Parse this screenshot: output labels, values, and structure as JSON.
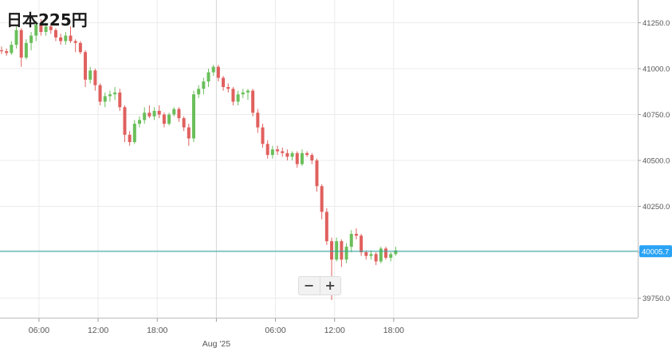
{
  "title": "日本225円",
  "zoom": {
    "minus": "−",
    "plus": "+"
  },
  "colors": {
    "up": "#6abf5b",
    "down": "#e0605e",
    "price_line": "#2aa3a0",
    "price_label_bg": "#2aa3f5",
    "grid": "#ebebeb"
  },
  "chart_data": {
    "type": "candlestick",
    "title": "日本225円",
    "interval_minutes": 30,
    "start_time": "04:00",
    "ylim": [
      39640,
      41340
    ],
    "y_ticks": [
      39750,
      40000,
      40250,
      40500,
      40750,
      41000,
      41250
    ],
    "y_tick_labels": [
      "39750.0",
      "40000.0",
      "40250.0",
      "40500.0",
      "40750.0",
      "41000.0",
      "41250.0"
    ],
    "x_tick_labels": [
      {
        "label": "06:00",
        "index": 4
      },
      {
        "label": "12:00",
        "index": 16
      },
      {
        "label": "18:00",
        "index": 28
      },
      {
        "label": "Aug '25",
        "index": 40,
        "date_separator": true
      },
      {
        "label": "06:00",
        "index": 52
      },
      {
        "label": "12:00",
        "index": 64
      },
      {
        "label": "18:00",
        "index": 76
      }
    ],
    "current_price": 40005.7,
    "current_price_label": "40005.7",
    "ohlc": [
      [
        41100,
        41120,
        41080,
        41095
      ],
      [
        41095,
        41110,
        41070,
        41085
      ],
      [
        41085,
        41150,
        41075,
        41130
      ],
      [
        41130,
        41230,
        41110,
        41210
      ],
      [
        41210,
        41220,
        41010,
        41060
      ],
      [
        41060,
        41160,
        41050,
        41140
      ],
      [
        41140,
        41200,
        41100,
        41180
      ],
      [
        41180,
        41260,
        41150,
        41240
      ],
      [
        41240,
        41270,
        41180,
        41200
      ],
      [
        41200,
        41250,
        41180,
        41230
      ],
      [
        41230,
        41240,
        41190,
        41210
      ],
      [
        41210,
        41220,
        41150,
        41170
      ],
      [
        41170,
        41190,
        41130,
        41150
      ],
      [
        41150,
        41200,
        41130,
        41180
      ],
      [
        41180,
        41230,
        41140,
        41150
      ],
      [
        41150,
        41160,
        41090,
        41140
      ],
      [
        41140,
        41150,
        41080,
        41090
      ],
      [
        41090,
        41100,
        40900,
        40940
      ],
      [
        40940,
        41010,
        40920,
        40990
      ],
      [
        40990,
        41000,
        40880,
        40910
      ],
      [
        40910,
        40920,
        40800,
        40820
      ],
      [
        40820,
        40870,
        40790,
        40850
      ],
      [
        40850,
        40880,
        40820,
        40860
      ],
      [
        40860,
        40900,
        40830,
        40870
      ],
      [
        40870,
        40890,
        40770,
        40790
      ],
      [
        40790,
        40800,
        40600,
        40640
      ],
      [
        40640,
        40660,
        40580,
        40600
      ],
      [
        40600,
        40720,
        40590,
        40700
      ],
      [
        40700,
        40740,
        40680,
        40720
      ],
      [
        40720,
        40790,
        40700,
        40760
      ],
      [
        40760,
        40800,
        40730,
        40740
      ],
      [
        40740,
        40790,
        40720,
        40770
      ],
      [
        40770,
        40800,
        40730,
        40750
      ],
      [
        40750,
        40760,
        40680,
        40700
      ],
      [
        40700,
        40760,
        40690,
        40750
      ],
      [
        40750,
        40790,
        40740,
        40780
      ],
      [
        40780,
        40790,
        40710,
        40730
      ],
      [
        40730,
        40740,
        40660,
        40680
      ],
      [
        40680,
        40700,
        40580,
        40620
      ],
      [
        40620,
        40880,
        40600,
        40860
      ],
      [
        40860,
        40910,
        40840,
        40890
      ],
      [
        40890,
        40950,
        40860,
        40930
      ],
      [
        40930,
        41000,
        40900,
        40980
      ],
      [
        40980,
        41020,
        40960,
        41010
      ],
      [
        41010,
        41020,
        40930,
        40950
      ],
      [
        40950,
        40960,
        40880,
        40900
      ],
      [
        40900,
        40920,
        40870,
        40890
      ],
      [
        40890,
        40900,
        40800,
        40820
      ],
      [
        40820,
        40880,
        40800,
        40860
      ],
      [
        40860,
        40890,
        40840,
        40870
      ],
      [
        40870,
        40890,
        40830,
        40880
      ],
      [
        40880,
        40890,
        40740,
        40760
      ],
      [
        40760,
        40780,
        40650,
        40680
      ],
      [
        40680,
        40700,
        40570,
        40590
      ],
      [
        40590,
        40610,
        40510,
        40530
      ],
      [
        40530,
        40580,
        40510,
        40560
      ],
      [
        40560,
        40580,
        40530,
        40550
      ],
      [
        40550,
        40570,
        40520,
        40540
      ],
      [
        40540,
        40560,
        40500,
        40520
      ],
      [
        40520,
        40550,
        40500,
        40540
      ],
      [
        40540,
        40550,
        40460,
        40480
      ],
      [
        40480,
        40560,
        40470,
        40540
      ],
      [
        40540,
        40550,
        40520,
        40530
      ],
      [
        40530,
        40540,
        40480,
        40500
      ],
      [
        40500,
        40510,
        40330,
        40360
      ],
      [
        40360,
        40370,
        40180,
        40220
      ],
      [
        40220,
        40240,
        40040,
        40060
      ],
      [
        40060,
        40080,
        39740,
        39960
      ],
      [
        39960,
        40080,
        39950,
        40060
      ],
      [
        40060,
        40070,
        39920,
        39960
      ],
      [
        39960,
        40050,
        39940,
        40030
      ],
      [
        40030,
        40120,
        40000,
        40100
      ],
      [
        40100,
        40130,
        40070,
        40090
      ],
      [
        40090,
        40100,
        39980,
        40000
      ],
      [
        40000,
        40010,
        39960,
        39980
      ],
      [
        39980,
        40010,
        39960,
        39990
      ],
      [
        39990,
        40000,
        39930,
        39950
      ],
      [
        39950,
        40030,
        39940,
        40020
      ],
      [
        40020,
        40030,
        39960,
        39970
      ],
      [
        39970,
        40000,
        39950,
        39990
      ],
      [
        39990,
        40030,
        39980,
        40010
      ]
    ]
  }
}
